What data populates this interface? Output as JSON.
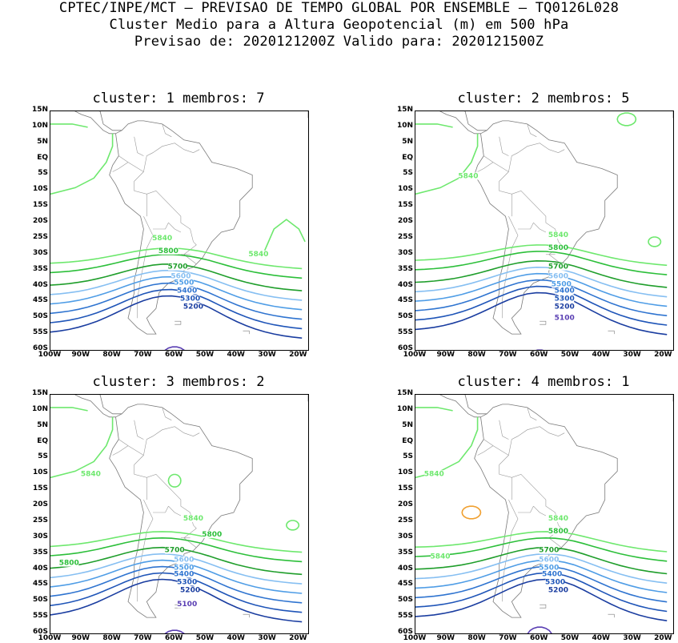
{
  "header": {
    "line1": "CPTEC/INPE/MCT — PREVISAO DE TEMPO GLOBAL POR ENSEMBLE — TQ0126L028",
    "line2": "Cluster Medio para a Altura Geopotencial (m) em 500 hPa",
    "line3": "Previsao de: 2020121200Z   Valido para: 2020121500Z"
  },
  "axes": {
    "lat_labels": [
      "15N",
      "10N",
      "5N",
      "EQ",
      "5S",
      "10S",
      "15S",
      "20S",
      "25S",
      "30S",
      "35S",
      "40S",
      "45S",
      "50S",
      "55S",
      "60S"
    ],
    "lon_labels": [
      "100W",
      "90W",
      "80W",
      "70W",
      "60W",
      "50W",
      "40W",
      "30W",
      "20W"
    ],
    "lon_min": -100,
    "lon_max": -17,
    "lat_min": -60,
    "lat_max": 15
  },
  "contour_colors": {
    "5840": "#6ee86e",
    "5800": "#2cbf3a",
    "5700": "#1f9e2b",
    "5600": "#86bff2",
    "5500": "#4f9de6",
    "5400": "#2f74d0",
    "5300": "#1f55b8",
    "5200": "#1a3da0",
    "5100": "#5a3fb3",
    "5900": "#f0a030"
  },
  "panels": [
    {
      "title": "cluster: 1  membros: 7",
      "contour_labels": [
        {
          "text": "5840",
          "level": "5840",
          "lon": -64,
          "lat": -25.5
        },
        {
          "text": "5840",
          "level": "5840",
          "lon": -33,
          "lat": -30.5
        },
        {
          "text": "5800",
          "level": "5800",
          "lon": -62,
          "lat": -29.5
        },
        {
          "text": "5700",
          "level": "5700",
          "lon": -59,
          "lat": -34.5
        },
        {
          "text": "5600",
          "level": "5600",
          "lon": -58,
          "lat": -37.5
        },
        {
          "text": "5500",
          "level": "5500",
          "lon": -57,
          "lat": -39.5
        },
        {
          "text": "5400",
          "level": "5400",
          "lon": -56,
          "lat": -42
        },
        {
          "text": "5300",
          "level": "5300",
          "lon": -55,
          "lat": -44.5
        },
        {
          "text": "5200",
          "level": "5200",
          "lon": -54,
          "lat": -47
        }
      ]
    },
    {
      "title": "cluster: 2  membros: 5",
      "contour_labels": [
        {
          "text": "5840",
          "level": "5840",
          "lon": -83,
          "lat": -6
        },
        {
          "text": "5840",
          "level": "5840",
          "lon": -54,
          "lat": -24.5
        },
        {
          "text": "5800",
          "level": "5800",
          "lon": -54,
          "lat": -28.5
        },
        {
          "text": "5700",
          "level": "5700",
          "lon": -54,
          "lat": -34.5
        },
        {
          "text": "5600",
          "level": "5600",
          "lon": -54,
          "lat": -37.5
        },
        {
          "text": "5500",
          "level": "5500",
          "lon": -53,
          "lat": -40
        },
        {
          "text": "5400",
          "level": "5400",
          "lon": -52,
          "lat": -42
        },
        {
          "text": "5300",
          "level": "5300",
          "lon": -52,
          "lat": -44.5
        },
        {
          "text": "5200",
          "level": "5200",
          "lon": -52,
          "lat": -47
        },
        {
          "text": "5100",
          "level": "5100",
          "lon": -52,
          "lat": -50.5
        }
      ]
    },
    {
      "title": "cluster: 3  membros: 2",
      "contour_labels": [
        {
          "text": "5840",
          "level": "5840",
          "lon": -87,
          "lat": -10.5
        },
        {
          "text": "5840",
          "level": "5840",
          "lon": -54,
          "lat": -24.5
        },
        {
          "text": "5800",
          "level": "5800",
          "lon": -48,
          "lat": -29.5
        },
        {
          "text": "5800",
          "level": "5800",
          "lon": -94,
          "lat": -38.5
        },
        {
          "text": "5700",
          "level": "5700",
          "lon": -60,
          "lat": -34.5
        },
        {
          "text": "5600",
          "level": "5600",
          "lon": -57,
          "lat": -37.5
        },
        {
          "text": "5500",
          "level": "5500",
          "lon": -57,
          "lat": -40
        },
        {
          "text": "5400",
          "level": "5400",
          "lon": -57,
          "lat": -42
        },
        {
          "text": "5300",
          "level": "5300",
          "lon": -56,
          "lat": -44.5
        },
        {
          "text": "5200",
          "level": "5200",
          "lon": -55,
          "lat": -47
        },
        {
          "text": "5100",
          "level": "5100",
          "lon": -56,
          "lat": -51.5
        }
      ]
    },
    {
      "title": "cluster: 4  membros: 1",
      "contour_labels": [
        {
          "text": "5840",
          "level": "5840",
          "lon": -94,
          "lat": -10.5
        },
        {
          "text": "5840",
          "level": "5840",
          "lon": -54,
          "lat": -24.5
        },
        {
          "text": "5840",
          "level": "5840",
          "lon": -92,
          "lat": -36.5
        },
        {
          "text": "5800",
          "level": "5800",
          "lon": -54,
          "lat": -28.5
        },
        {
          "text": "5700",
          "level": "5700",
          "lon": -57,
          "lat": -34.5
        },
        {
          "text": "5600",
          "level": "5600",
          "lon": -57,
          "lat": -37.5
        },
        {
          "text": "5500",
          "level": "5500",
          "lon": -57,
          "lat": -40
        },
        {
          "text": "5400",
          "level": "5400",
          "lon": -56,
          "lat": -42
        },
        {
          "text": "5300",
          "level": "5300",
          "lon": -55,
          "lat": -44.5
        },
        {
          "text": "5200",
          "level": "5200",
          "lon": -54,
          "lat": -47
        }
      ]
    }
  ]
}
